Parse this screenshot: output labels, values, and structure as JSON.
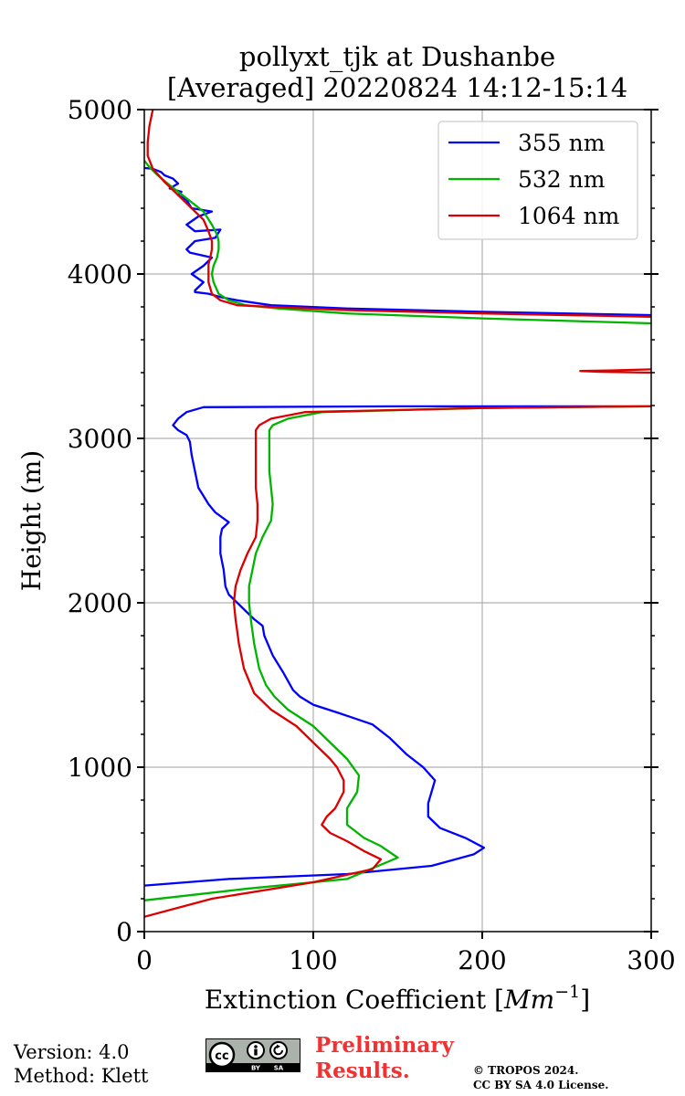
{
  "chart_data": {
    "type": "line",
    "title": "pollyxt_tjk at Dushanbe",
    "subtitle": "[Averaged] 20220824 14:12-15:14",
    "xlabel": "Extinction Coefficient [Mm^-1]",
    "xlabel_parts": {
      "main": "Extinction Coefficient [",
      "unit": "Mm",
      "exp": "−1",
      "end": "]"
    },
    "ylabel": "Height (m)",
    "xlim": [
      0,
      300
    ],
    "ylim": [
      0,
      5000
    ],
    "xticks": [
      0,
      100,
      200,
      300
    ],
    "yticks": [
      0,
      1000,
      2000,
      3000,
      4000,
      5000
    ],
    "grid": true,
    "legend_position": "top-right",
    "series": [
      {
        "name": "355 nm",
        "color": "#0000ff",
        "points": [
          [
            0,
            280
          ],
          [
            50,
            320
          ],
          [
            120,
            350
          ],
          [
            170,
            400
          ],
          [
            195,
            470
          ],
          [
            201,
            510
          ],
          [
            190,
            570
          ],
          [
            175,
            630
          ],
          [
            168,
            700
          ],
          [
            168,
            780
          ],
          [
            170,
            850
          ],
          [
            172,
            920
          ],
          [
            165,
            1000
          ],
          [
            155,
            1080
          ],
          [
            145,
            1180
          ],
          [
            135,
            1260
          ],
          [
            115,
            1330
          ],
          [
            100,
            1380
          ],
          [
            92,
            1430
          ],
          [
            88,
            1470
          ],
          [
            82,
            1580
          ],
          [
            76,
            1680
          ],
          [
            71,
            1800
          ],
          [
            70,
            1860
          ],
          [
            65,
            1900
          ],
          [
            60,
            1950
          ],
          [
            55,
            2000
          ],
          [
            50,
            2050
          ],
          [
            48,
            2100
          ],
          [
            47,
            2200
          ],
          [
            45,
            2300
          ],
          [
            45,
            2400
          ],
          [
            46,
            2450
          ],
          [
            50,
            2490
          ],
          [
            42,
            2550
          ],
          [
            38,
            2600
          ],
          [
            35,
            2650
          ],
          [
            32,
            2700
          ],
          [
            30,
            2800
          ],
          [
            28,
            2900
          ],
          [
            27,
            2980
          ],
          [
            25,
            3020
          ],
          [
            20,
            3050
          ],
          [
            17,
            3080
          ],
          [
            20,
            3120
          ],
          [
            25,
            3160
          ],
          [
            35,
            3190
          ],
          [
            150,
            3195
          ],
          [
            300,
            3195
          ]
        ]
      },
      {
        "name": "532 nm",
        "color": "#00b400",
        "points": [
          [
            0,
            190
          ],
          [
            60,
            260
          ],
          [
            120,
            320
          ],
          [
            150,
            450
          ],
          [
            140,
            520
          ],
          [
            130,
            570
          ],
          [
            120,
            650
          ],
          [
            120,
            750
          ],
          [
            126,
            850
          ],
          [
            127,
            950
          ],
          [
            120,
            1050
          ],
          [
            110,
            1150
          ],
          [
            100,
            1250
          ],
          [
            85,
            1350
          ],
          [
            77,
            1430
          ],
          [
            72,
            1500
          ],
          [
            68,
            1600
          ],
          [
            65,
            1750
          ],
          [
            63,
            1900
          ],
          [
            62,
            2000
          ],
          [
            62,
            2100
          ],
          [
            64,
            2200
          ],
          [
            66,
            2300
          ],
          [
            70,
            2400
          ],
          [
            75,
            2500
          ],
          [
            76,
            2600
          ],
          [
            75,
            2700
          ],
          [
            74,
            2800
          ],
          [
            74,
            2900
          ],
          [
            74,
            3000
          ],
          [
            74,
            3050
          ],
          [
            76,
            3080
          ],
          [
            85,
            3120
          ],
          [
            105,
            3160
          ],
          [
            200,
            3185
          ],
          [
            300,
            3195
          ]
        ]
      },
      {
        "name": "1064 nm",
        "color": "#dc0000",
        "points": [
          [
            0,
            90
          ],
          [
            40,
            200
          ],
          [
            100,
            300
          ],
          [
            135,
            380
          ],
          [
            140,
            440
          ],
          [
            130,
            490
          ],
          [
            120,
            550
          ],
          [
            110,
            600
          ],
          [
            105,
            650
          ],
          [
            108,
            700
          ],
          [
            113,
            750
          ],
          [
            118,
            850
          ],
          [
            118,
            920
          ],
          [
            114,
            1000
          ],
          [
            110,
            1050
          ],
          [
            100,
            1150
          ],
          [
            90,
            1250
          ],
          [
            75,
            1350
          ],
          [
            65,
            1450
          ],
          [
            59,
            1600
          ],
          [
            56,
            1750
          ],
          [
            54,
            1900
          ],
          [
            53,
            2000
          ],
          [
            54,
            2100
          ],
          [
            57,
            2200
          ],
          [
            61,
            2300
          ],
          [
            66,
            2400
          ],
          [
            67,
            2500
          ],
          [
            67,
            2600
          ],
          [
            66,
            2700
          ],
          [
            66,
            2800
          ],
          [
            66,
            2900
          ],
          [
            66,
            3000
          ],
          [
            66,
            3050
          ],
          [
            68,
            3080
          ],
          [
            75,
            3120
          ],
          [
            95,
            3160
          ],
          [
            200,
            3185
          ],
          [
            300,
            3195
          ]
        ]
      }
    ],
    "upper_segments": [
      {
        "series": "355 nm",
        "points": [
          [
            300,
            3750
          ],
          [
            200,
            3770
          ],
          [
            120,
            3790
          ],
          [
            75,
            3810
          ],
          [
            55,
            3840
          ],
          [
            45,
            3860
          ],
          [
            38,
            3880
          ],
          [
            30,
            3890
          ],
          [
            30,
            3900
          ],
          [
            35,
            3950
          ],
          [
            28,
            4000
          ],
          [
            35,
            4050
          ],
          [
            40,
            4100
          ],
          [
            27,
            4130
          ],
          [
            25,
            4150
          ],
          [
            30,
            4200
          ],
          [
            42,
            4220
          ],
          [
            45,
            4270
          ],
          [
            30,
            4260
          ],
          [
            25,
            4300
          ],
          [
            32,
            4350
          ],
          [
            40,
            4380
          ],
          [
            28,
            4400
          ],
          [
            25,
            4450
          ],
          [
            20,
            4480
          ],
          [
            22,
            4500
          ],
          [
            15,
            4520
          ],
          [
            20,
            4550
          ],
          [
            17,
            4580
          ],
          [
            12,
            4600
          ],
          [
            10,
            4620
          ],
          [
            5,
            4640
          ],
          [
            0,
            4645
          ]
        ]
      },
      {
        "series": "532 nm",
        "points": [
          [
            300,
            3700
          ],
          [
            200,
            3730
          ],
          [
            120,
            3760
          ],
          [
            80,
            3790
          ],
          [
            60,
            3810
          ],
          [
            50,
            3840
          ],
          [
            44,
            3880
          ],
          [
            41,
            3950
          ],
          [
            40,
            4000
          ],
          [
            41,
            4050
          ],
          [
            43,
            4100
          ],
          [
            44,
            4150
          ],
          [
            44,
            4200
          ],
          [
            43,
            4240
          ],
          [
            40,
            4300
          ],
          [
            35,
            4380
          ],
          [
            25,
            4460
          ],
          [
            15,
            4540
          ],
          [
            8,
            4600
          ],
          [
            3,
            4650
          ],
          [
            0,
            4690
          ]
        ]
      },
      {
        "series": "1064 nm",
        "points": [
          [
            300,
            3740
          ],
          [
            200,
            3760
          ],
          [
            120,
            3780
          ],
          [
            75,
            3800
          ],
          [
            55,
            3810
          ],
          [
            45,
            3840
          ],
          [
            40,
            3880
          ],
          [
            38,
            3950
          ],
          [
            38,
            4000
          ],
          [
            38,
            4060
          ],
          [
            39,
            4100
          ],
          [
            40,
            4150
          ],
          [
            40,
            4200
          ],
          [
            38,
            4260
          ],
          [
            35,
            4330
          ],
          [
            28,
            4400
          ],
          [
            20,
            4480
          ],
          [
            12,
            4560
          ],
          [
            5,
            4640
          ],
          [
            2,
            4720
          ],
          [
            2,
            4800
          ],
          [
            3,
            4900
          ],
          [
            5,
            5000
          ]
        ]
      },
      {
        "series": "1064 nm",
        "points": [
          [
            300,
            3400
          ],
          [
            270,
            3405
          ],
          [
            258,
            3410
          ],
          [
            275,
            3413
          ],
          [
            300,
            3420
          ]
        ]
      }
    ]
  },
  "footer": {
    "version": "Version: 4.0",
    "method": "Method: Klett",
    "preliminary_line1": "Preliminary",
    "preliminary_line2": "Results.",
    "copyright_line1": "© TROPOS 2024.",
    "copyright_line2": "CC BY SA 4.0 License.",
    "license_badge": {
      "mark": "cc",
      "tags": [
        "BY",
        "SA"
      ]
    }
  }
}
